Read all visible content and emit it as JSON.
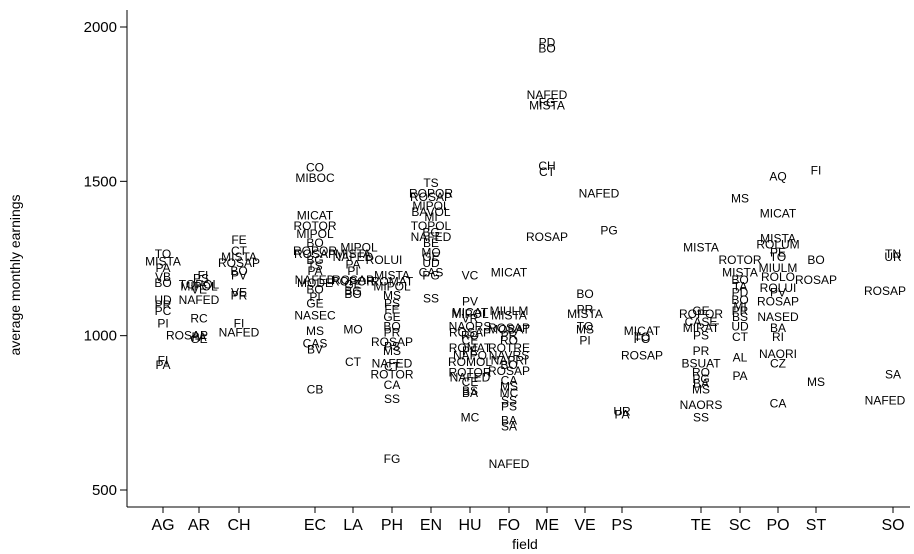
{
  "chart_data": {
    "type": "scatter",
    "marker": "label-text",
    "xlabel": "field",
    "ylabel": "average monthly earnings",
    "ylim": [
      500,
      2000
    ],
    "yticks": [
      500,
      1000,
      1500,
      2000
    ],
    "grid": false,
    "legend": "none",
    "categories": [
      "AG",
      "AR",
      "CH",
      "EC",
      "LA",
      "PH",
      "EN",
      "HU",
      "FO",
      "ME",
      "VE",
      "PS",
      "TE",
      "SC",
      "PO",
      "ST",
      "SO"
    ],
    "points": [
      {
        "c": "AG",
        "l": "TO",
        "y": 1265,
        "dx": 0
      },
      {
        "c": "AG",
        "l": "MISTA",
        "y": 1240,
        "dx": 0
      },
      {
        "c": "AG",
        "l": "PA",
        "y": 1220,
        "dx": 0
      },
      {
        "c": "AG",
        "l": "VB",
        "y": 1190,
        "dx": 0
      },
      {
        "c": "AG",
        "l": "BO",
        "y": 1170,
        "dx": 0
      },
      {
        "c": "AG",
        "l": "UD",
        "y": 1115,
        "dx": 0
      },
      {
        "c": "AG",
        "l": "PR",
        "y": 1100,
        "dx": 0
      },
      {
        "c": "AG",
        "l": "PC",
        "y": 1080,
        "dx": 0
      },
      {
        "c": "AG",
        "l": "PI",
        "y": 1040,
        "dx": 0
      },
      {
        "c": "AG",
        "l": "FI",
        "y": 920,
        "dx": 0
      },
      {
        "c": "AG",
        "l": "PA",
        "y": 905,
        "dx": 0
      },
      {
        "c": "AR",
        "l": "FI",
        "y": 1195,
        "dx": 4
      },
      {
        "c": "AR",
        "l": "PS",
        "y": 1185,
        "dx": 2
      },
      {
        "c": "AR",
        "l": "TOPOL",
        "y": 1165,
        "dx": 0
      },
      {
        "c": "AR",
        "l": "MIPOL",
        "y": 1160,
        "dx": 0
      },
      {
        "c": "AR",
        "l": "VE",
        "y": 1150,
        "dx": 0
      },
      {
        "c": "AR",
        "l": "NAFED",
        "y": 1115,
        "dx": 0
      },
      {
        "c": "AR",
        "l": "RC",
        "y": 1055,
        "dx": 0
      },
      {
        "c": "AR",
        "l": "ROSAP",
        "y": 1000,
        "dx": -12
      },
      {
        "c": "AR",
        "l": "PA",
        "y": 995,
        "dx": 0
      },
      {
        "c": "AR",
        "l": "GE",
        "y": 990,
        "dx": 0
      },
      {
        "c": "CH",
        "l": "FE",
        "y": 1310,
        "dx": 0
      },
      {
        "c": "CH",
        "l": "CT",
        "y": 1275,
        "dx": 0
      },
      {
        "c": "CH",
        "l": "MISTA",
        "y": 1255,
        "dx": 0
      },
      {
        "c": "CH",
        "l": "ROSAP",
        "y": 1235,
        "dx": 0
      },
      {
        "c": "CH",
        "l": "BO",
        "y": 1210,
        "dx": 0
      },
      {
        "c": "CH",
        "l": "PV",
        "y": 1195,
        "dx": 0
      },
      {
        "c": "CH",
        "l": "VE",
        "y": 1140,
        "dx": 0
      },
      {
        "c": "CH",
        "l": "PR",
        "y": 1130,
        "dx": 0
      },
      {
        "c": "CH",
        "l": "FI",
        "y": 1040,
        "dx": 0
      },
      {
        "c": "CH",
        "l": "NAFED",
        "y": 1010,
        "dx": 0
      },
      {
        "c": "EC",
        "l": "CO",
        "y": 1545,
        "dx": 0
      },
      {
        "c": "EC",
        "l": "MIBOC",
        "y": 1510,
        "dx": 0
      },
      {
        "c": "EC",
        "l": "MICAT",
        "y": 1390,
        "dx": 0
      },
      {
        "c": "EC",
        "l": "ROTOR",
        "y": 1355,
        "dx": 0
      },
      {
        "c": "EC",
        "l": "MIPOL",
        "y": 1330,
        "dx": 0
      },
      {
        "c": "EC",
        "l": "BO",
        "y": 1300,
        "dx": 0
      },
      {
        "c": "EC",
        "l": "ROPOR",
        "y": 1275,
        "dx": 0
      },
      {
        "c": "EC",
        "l": "ROSAP",
        "y": 1265,
        "dx": 0
      },
      {
        "c": "EC",
        "l": "BG",
        "y": 1245,
        "dx": 0
      },
      {
        "c": "EC",
        "l": "TS",
        "y": 1225,
        "dx": 0
      },
      {
        "c": "EC",
        "l": "PA",
        "y": 1210,
        "dx": 0
      },
      {
        "c": "EC",
        "l": "NAFED",
        "y": 1180,
        "dx": 0
      },
      {
        "c": "EC",
        "l": "MODE",
        "y": 1170,
        "dx": 0
      },
      {
        "c": "EC",
        "l": "BO",
        "y": 1150,
        "dx": 0
      },
      {
        "c": "EC",
        "l": "PI",
        "y": 1125,
        "dx": 0
      },
      {
        "c": "EC",
        "l": "GE",
        "y": 1105,
        "dx": 0
      },
      {
        "c": "EC",
        "l": "NASEC",
        "y": 1065,
        "dx": 0
      },
      {
        "c": "EC",
        "l": "MS",
        "y": 1015,
        "dx": 0
      },
      {
        "c": "EC",
        "l": "CAS",
        "y": 975,
        "dx": 0
      },
      {
        "c": "EC",
        "l": "BV",
        "y": 955,
        "dx": 0
      },
      {
        "c": "EC",
        "l": "CB",
        "y": 825,
        "dx": 0
      },
      {
        "c": "LA",
        "l": "MIPOL",
        "y": 1285,
        "dx": 6
      },
      {
        "c": "LA",
        "l": "MISTA",
        "y": 1265,
        "dx": 0
      },
      {
        "c": "LA",
        "l": "NAFED",
        "y": 1255,
        "dx": 0
      },
      {
        "c": "LA",
        "l": "PA",
        "y": 1230,
        "dx": 0
      },
      {
        "c": "LA",
        "l": "PI",
        "y": 1210,
        "dx": 0
      },
      {
        "c": "LA",
        "l": "ROSAP",
        "y": 1180,
        "dx": 0
      },
      {
        "c": "LA",
        "l": "ROPOR",
        "y": 1175,
        "dx": 0
      },
      {
        "c": "LA",
        "l": "GE",
        "y": 1165,
        "dx": 0
      },
      {
        "c": "LA",
        "l": "BG",
        "y": 1145,
        "dx": 0
      },
      {
        "c": "LA",
        "l": "BO",
        "y": 1135,
        "dx": 0
      },
      {
        "c": "LA",
        "l": "MO",
        "y": 1020,
        "dx": 0
      },
      {
        "c": "LA",
        "l": "CT",
        "y": 915,
        "dx": 0
      },
      {
        "c": "PH",
        "l": "ROLUI",
        "y": 1245,
        "dx": -8
      },
      {
        "c": "PH",
        "l": "MISTA",
        "y": 1195,
        "dx": 0
      },
      {
        "c": "PH",
        "l": "ROMAT",
        "y": 1175,
        "dx": 0
      },
      {
        "c": "PH",
        "l": "MIPOL",
        "y": 1160,
        "dx": 0
      },
      {
        "c": "PH",
        "l": "MS",
        "y": 1130,
        "dx": 0
      },
      {
        "c": "PH",
        "l": "PS",
        "y": 1105,
        "dx": 0
      },
      {
        "c": "PH",
        "l": "FE",
        "y": 1085,
        "dx": 0
      },
      {
        "c": "PH",
        "l": "GE",
        "y": 1060,
        "dx": 0
      },
      {
        "c": "PH",
        "l": "BO",
        "y": 1030,
        "dx": 0
      },
      {
        "c": "PH",
        "l": "PR",
        "y": 1010,
        "dx": 0
      },
      {
        "c": "PH",
        "l": "ROSAP",
        "y": 980,
        "dx": 0
      },
      {
        "c": "PH",
        "l": "PS",
        "y": 965,
        "dx": 0
      },
      {
        "c": "PH",
        "l": "MS",
        "y": 950,
        "dx": 0
      },
      {
        "c": "PH",
        "l": "NAFED",
        "y": 910,
        "dx": 0
      },
      {
        "c": "PH",
        "l": "CT",
        "y": 900,
        "dx": 0
      },
      {
        "c": "PH",
        "l": "ROTOR",
        "y": 875,
        "dx": 0
      },
      {
        "c": "PH",
        "l": "CA",
        "y": 840,
        "dx": 0
      },
      {
        "c": "PH",
        "l": "SS",
        "y": 795,
        "dx": 0
      },
      {
        "c": "PH",
        "l": "FG",
        "y": 600,
        "dx": 0
      },
      {
        "c": "EN",
        "l": "TS",
        "y": 1495,
        "dx": 0
      },
      {
        "c": "EN",
        "l": "ROPOR",
        "y": 1460,
        "dx": 0
      },
      {
        "c": "EN",
        "l": "ROSAP",
        "y": 1450,
        "dx": 0
      },
      {
        "c": "EN",
        "l": "MIPOL",
        "y": 1420,
        "dx": 0
      },
      {
        "c": "EN",
        "l": "BAVOL",
        "y": 1400,
        "dx": 0
      },
      {
        "c": "EN",
        "l": "MI",
        "y": 1385,
        "dx": 0
      },
      {
        "c": "EN",
        "l": "TOPOL",
        "y": 1355,
        "dx": 0
      },
      {
        "c": "EN",
        "l": "BG",
        "y": 1335,
        "dx": 0
      },
      {
        "c": "EN",
        "l": "NAFED",
        "y": 1320,
        "dx": 0
      },
      {
        "c": "EN",
        "l": "BE",
        "y": 1300,
        "dx": 0
      },
      {
        "c": "EN",
        "l": "MO",
        "y": 1270,
        "dx": 0
      },
      {
        "c": "EN",
        "l": "GE",
        "y": 1255,
        "dx": 0
      },
      {
        "c": "EN",
        "l": "UD",
        "y": 1235,
        "dx": 0
      },
      {
        "c": "EN",
        "l": "CAS",
        "y": 1205,
        "dx": 0
      },
      {
        "c": "EN",
        "l": "PG",
        "y": 1195,
        "dx": 0
      },
      {
        "c": "EN",
        "l": "SS",
        "y": 1120,
        "dx": 0
      },
      {
        "c": "HU",
        "l": "VC",
        "y": 1195,
        "dx": 0
      },
      {
        "c": "HU",
        "l": "PV",
        "y": 1110,
        "dx": 0
      },
      {
        "c": "HU",
        "l": "MICAT",
        "y": 1075,
        "dx": 0
      },
      {
        "c": "HU",
        "l": "MIPOL",
        "y": 1070,
        "dx": 0
      },
      {
        "c": "HU",
        "l": "VR",
        "y": 1055,
        "dx": 0
      },
      {
        "c": "HU",
        "l": "NAORS",
        "y": 1030,
        "dx": 0
      },
      {
        "c": "HU",
        "l": "ROSAP",
        "y": 1010,
        "dx": 0
      },
      {
        "c": "HU",
        "l": "RO",
        "y": 1000,
        "dx": 0
      },
      {
        "c": "HU",
        "l": "CE",
        "y": 985,
        "dx": 0
      },
      {
        "c": "HU",
        "l": "ROMAT",
        "y": 960,
        "dx": 0
      },
      {
        "c": "HU",
        "l": "PE",
        "y": 950,
        "dx": 0
      },
      {
        "c": "HU",
        "l": "NAPO",
        "y": 935,
        "dx": 0
      },
      {
        "c": "HU",
        "l": "ROMOL",
        "y": 915,
        "dx": 0
      },
      {
        "c": "HU",
        "l": "ROTOR",
        "y": 880,
        "dx": 0
      },
      {
        "c": "HU",
        "l": "NAFED",
        "y": 865,
        "dx": 0
      },
      {
        "c": "HU",
        "l": "CE",
        "y": 850,
        "dx": 0
      },
      {
        "c": "HU",
        "l": "BS",
        "y": 820,
        "dx": 0
      },
      {
        "c": "HU",
        "l": "BA",
        "y": 815,
        "dx": 0
      },
      {
        "c": "HU",
        "l": "MC",
        "y": 735,
        "dx": 0
      },
      {
        "c": "FO",
        "l": "MICAT",
        "y": 1205,
        "dx": 0
      },
      {
        "c": "FO",
        "l": "MIULM",
        "y": 1080,
        "dx": 0
      },
      {
        "c": "FO",
        "l": "MISTA",
        "y": 1065,
        "dx": 0
      },
      {
        "c": "FO",
        "l": "ROSAP",
        "y": 1025,
        "dx": 0
      },
      {
        "c": "FO",
        "l": "MOBAT",
        "y": 1020,
        "dx": 0
      },
      {
        "c": "FO",
        "l": "PR",
        "y": 1000,
        "dx": 0
      },
      {
        "c": "FO",
        "l": "RO",
        "y": 985,
        "dx": 0
      },
      {
        "c": "FO",
        "l": "ROTRE",
        "y": 960,
        "dx": 0
      },
      {
        "c": "FO",
        "l": "NAVRS",
        "y": 935,
        "dx": 0
      },
      {
        "c": "FO",
        "l": "NAPRI",
        "y": 920,
        "dx": 0
      },
      {
        "c": "FO",
        "l": "BO",
        "y": 905,
        "dx": 0
      },
      {
        "c": "FO",
        "l": "ROSAP",
        "y": 885,
        "dx": 0
      },
      {
        "c": "FO",
        "l": "CA",
        "y": 855,
        "dx": 0
      },
      {
        "c": "FO",
        "l": "MS",
        "y": 835,
        "dx": 0
      },
      {
        "c": "FO",
        "l": "MC",
        "y": 815,
        "dx": 0
      },
      {
        "c": "FO",
        "l": "SS",
        "y": 790,
        "dx": 0
      },
      {
        "c": "FO",
        "l": "PS",
        "y": 770,
        "dx": 0
      },
      {
        "c": "FO",
        "l": "BA",
        "y": 725,
        "dx": 0
      },
      {
        "c": "FO",
        "l": "SA",
        "y": 705,
        "dx": 0
      },
      {
        "c": "FO",
        "l": "NAFED",
        "y": 585,
        "dx": 0
      },
      {
        "c": "ME",
        "l": "PD",
        "y": 1950,
        "dx": 0
      },
      {
        "c": "ME",
        "l": "BO",
        "y": 1930,
        "dx": 0
      },
      {
        "c": "ME",
        "l": "NAFED",
        "y": 1780,
        "dx": 0
      },
      {
        "c": "ME",
        "l": "FG",
        "y": 1755,
        "dx": 0
      },
      {
        "c": "ME",
        "l": "MISTA",
        "y": 1745,
        "dx": 0
      },
      {
        "c": "ME",
        "l": "CH",
        "y": 1550,
        "dx": 0
      },
      {
        "c": "ME",
        "l": "CT",
        "y": 1530,
        "dx": 0
      },
      {
        "c": "ME",
        "l": "ROSAP",
        "y": 1320,
        "dx": 0
      },
      {
        "c": "VE",
        "l": "NAFED",
        "y": 1460,
        "dx": 14
      },
      {
        "c": "VE",
        "l": "PG",
        "y": 1340,
        "dx": 24
      },
      {
        "c": "VE",
        "l": "BO",
        "y": 1135,
        "dx": 0
      },
      {
        "c": "VE",
        "l": "PR",
        "y": 1085,
        "dx": 0
      },
      {
        "c": "VE",
        "l": "MISTA",
        "y": 1070,
        "dx": 0
      },
      {
        "c": "VE",
        "l": "TO",
        "y": 1030,
        "dx": 0
      },
      {
        "c": "VE",
        "l": "MS",
        "y": 1020,
        "dx": 0
      },
      {
        "c": "VE",
        "l": "PI",
        "y": 985,
        "dx": 0
      },
      {
        "c": "PS",
        "l": "MICAT",
        "y": 1015,
        "dx": 20
      },
      {
        "c": "PS",
        "l": "TO",
        "y": 995,
        "dx": 20
      },
      {
        "c": "PS",
        "l": "FO",
        "y": 990,
        "dx": 20
      },
      {
        "c": "PS",
        "l": "ROSAP",
        "y": 935,
        "dx": 20
      },
      {
        "c": "PS",
        "l": "UR",
        "y": 755,
        "dx": 0
      },
      {
        "c": "PS",
        "l": "PA",
        "y": 745,
        "dx": 0
      },
      {
        "c": "TE",
        "l": "MISTA",
        "y": 1285,
        "dx": 0
      },
      {
        "c": "TE",
        "l": "ROPOR",
        "y": 1070,
        "dx": 0
      },
      {
        "c": "TE",
        "l": "GE",
        "y": 1080,
        "dx": 0
      },
      {
        "c": "TE",
        "l": "CASE",
        "y": 1045,
        "dx": 0
      },
      {
        "c": "TE",
        "l": "MIRAT",
        "y": 1025,
        "dx": 0
      },
      {
        "c": "TE",
        "l": "PS",
        "y": 1000,
        "dx": 0
      },
      {
        "c": "TE",
        "l": "PR",
        "y": 950,
        "dx": 0
      },
      {
        "c": "TE",
        "l": "BSUAT",
        "y": 910,
        "dx": 0
      },
      {
        "c": "TE",
        "l": "RO",
        "y": 880,
        "dx": 0
      },
      {
        "c": "TE",
        "l": "PG",
        "y": 860,
        "dx": 0
      },
      {
        "c": "TE",
        "l": "BA",
        "y": 845,
        "dx": 0
      },
      {
        "c": "TE",
        "l": "MS",
        "y": 825,
        "dx": 0
      },
      {
        "c": "TE",
        "l": "NAORS",
        "y": 775,
        "dx": 0
      },
      {
        "c": "TE",
        "l": "SS",
        "y": 735,
        "dx": 0
      },
      {
        "c": "SC",
        "l": "MS",
        "y": 1445,
        "dx": 0
      },
      {
        "c": "SC",
        "l": "ROTOR",
        "y": 1245,
        "dx": 0
      },
      {
        "c": "SC",
        "l": "MISTA",
        "y": 1205,
        "dx": 0
      },
      {
        "c": "SC",
        "l": "BO",
        "y": 1180,
        "dx": 0
      },
      {
        "c": "SC",
        "l": "TA",
        "y": 1160,
        "dx": 0
      },
      {
        "c": "SC",
        "l": "PD",
        "y": 1140,
        "dx": 0
      },
      {
        "c": "SC",
        "l": "BO",
        "y": 1115,
        "dx": 0
      },
      {
        "c": "SC",
        "l": "MI",
        "y": 1095,
        "dx": 0
      },
      {
        "c": "SC",
        "l": "PR",
        "y": 1080,
        "dx": 0
      },
      {
        "c": "SC",
        "l": "BS",
        "y": 1060,
        "dx": 0
      },
      {
        "c": "SC",
        "l": "UD",
        "y": 1030,
        "dx": 0
      },
      {
        "c": "SC",
        "l": "CT",
        "y": 995,
        "dx": 0
      },
      {
        "c": "SC",
        "l": "AL",
        "y": 930,
        "dx": 0
      },
      {
        "c": "SC",
        "l": "PA",
        "y": 870,
        "dx": 0
      },
      {
        "c": "PO",
        "l": "AQ",
        "y": 1515,
        "dx": 0
      },
      {
        "c": "PO",
        "l": "MICAT",
        "y": 1395,
        "dx": 0
      },
      {
        "c": "PO",
        "l": "MISTA",
        "y": 1315,
        "dx": 0
      },
      {
        "c": "PO",
        "l": "ROLUM",
        "y": 1295,
        "dx": 0
      },
      {
        "c": "PO",
        "l": "PE",
        "y": 1270,
        "dx": 0
      },
      {
        "c": "PO",
        "l": "TO",
        "y": 1255,
        "dx": 0
      },
      {
        "c": "PO",
        "l": "MIULM",
        "y": 1220,
        "dx": 0
      },
      {
        "c": "PO",
        "l": "ROLO",
        "y": 1190,
        "dx": 0
      },
      {
        "c": "PO",
        "l": "ROLUI",
        "y": 1155,
        "dx": 0
      },
      {
        "c": "PO",
        "l": "PV",
        "y": 1140,
        "dx": 0
      },
      {
        "c": "PO",
        "l": "ROSAP",
        "y": 1110,
        "dx": 0
      },
      {
        "c": "PO",
        "l": "NASED",
        "y": 1060,
        "dx": 0
      },
      {
        "c": "PO",
        "l": "BA",
        "y": 1025,
        "dx": 0
      },
      {
        "c": "PO",
        "l": "RI",
        "y": 995,
        "dx": 0
      },
      {
        "c": "PO",
        "l": "NAORI",
        "y": 940,
        "dx": 0
      },
      {
        "c": "PO",
        "l": "CZ",
        "y": 910,
        "dx": 0
      },
      {
        "c": "PO",
        "l": "CA",
        "y": 780,
        "dx": 0
      },
      {
        "c": "ST",
        "l": "FI",
        "y": 1535,
        "dx": 0
      },
      {
        "c": "ST",
        "l": "ROSAP",
        "y": 1180,
        "dx": 0
      },
      {
        "c": "ST",
        "l": "BO",
        "y": 1245,
        "dx": 0
      },
      {
        "c": "ST",
        "l": "MS",
        "y": 850,
        "dx": 0
      },
      {
        "c": "SO",
        "l": "TN",
        "y": 1265,
        "dx": 0
      },
      {
        "c": "SO",
        "l": "UR",
        "y": 1255,
        "dx": 0
      },
      {
        "c": "SO",
        "l": "ROSAP",
        "y": 1145,
        "dx": -8
      },
      {
        "c": "SO",
        "l": "SA",
        "y": 875,
        "dx": 0
      },
      {
        "c": "SO",
        "l": "NAFED",
        "y": 790,
        "dx": -8
      }
    ]
  }
}
